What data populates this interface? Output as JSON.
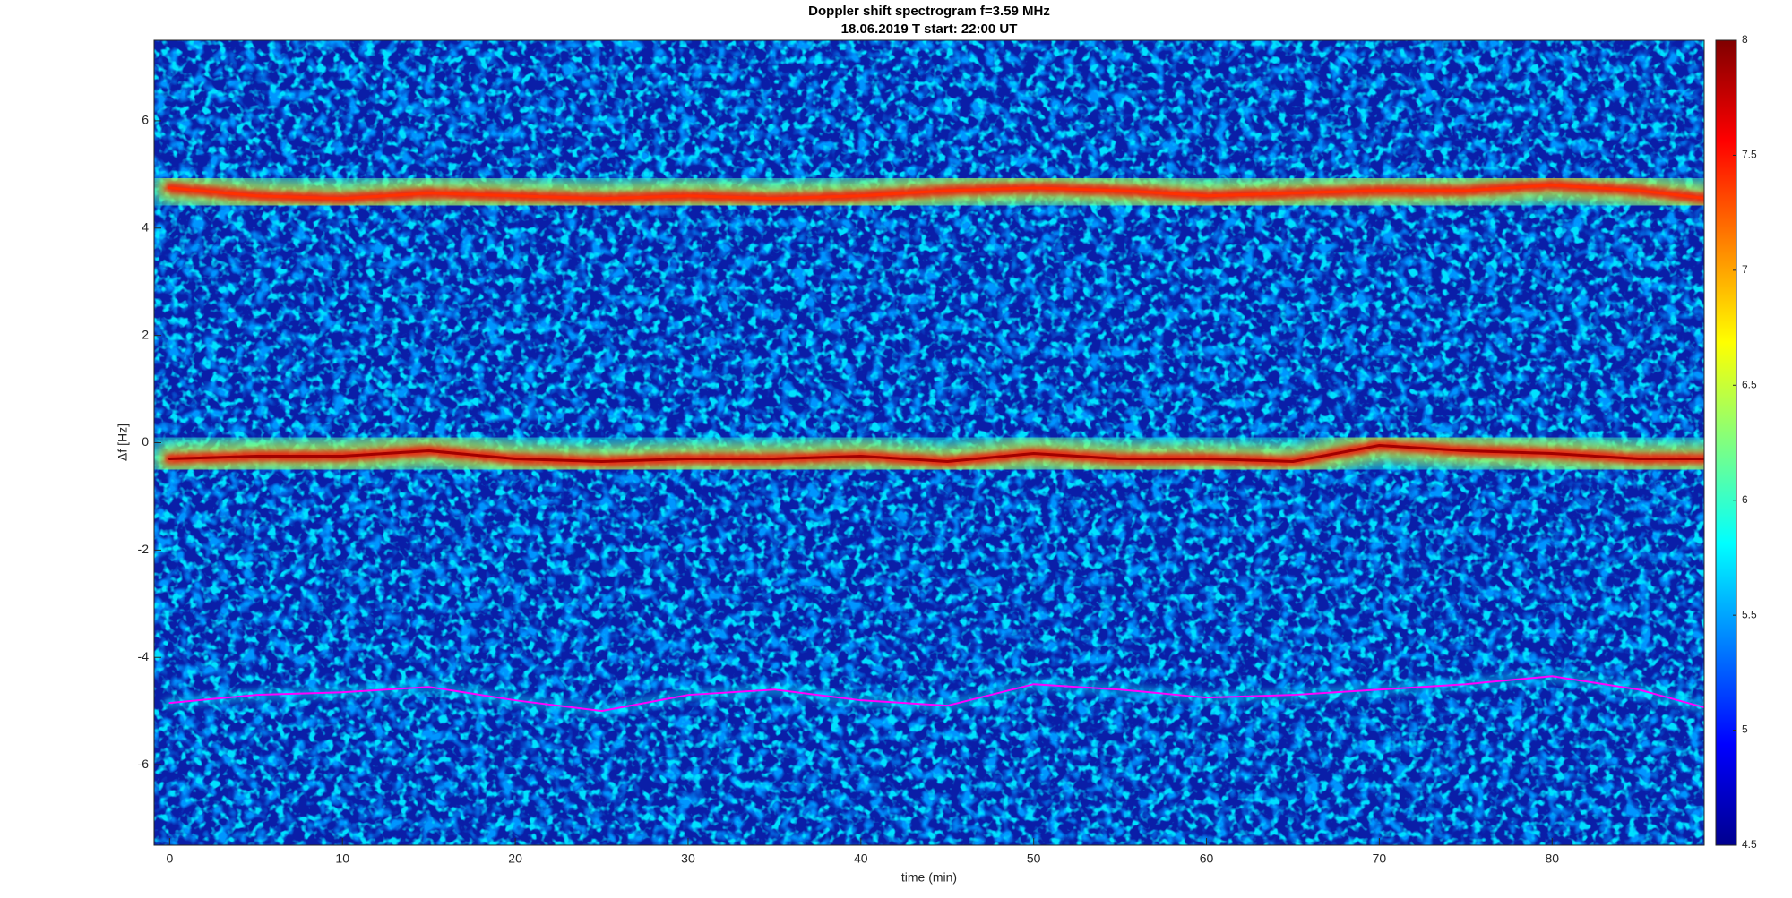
{
  "chart_data": {
    "type": "spectrogram",
    "title": "Doppler shift spectrogram f=3.59 MHz",
    "subtitle": "18.06.2019    T start: 22:00 UT",
    "xlabel": "time (min)",
    "ylabel": "Δf [Hz]",
    "xlim": [
      -0.9,
      88.8
    ],
    "xticks": [
      0,
      10,
      20,
      30,
      40,
      50,
      60,
      70,
      80
    ],
    "ylim": [
      -7.5,
      7.5
    ],
    "yticks": [
      -6,
      -4,
      -2,
      0,
      2,
      4,
      6
    ],
    "background": "#0a1ea8",
    "x": [
      0,
      5,
      10,
      15,
      20,
      25,
      30,
      35,
      40,
      45,
      50,
      55,
      60,
      65,
      70,
      75,
      80,
      85,
      89
    ],
    "series": [
      {
        "color": "#ff3000",
        "values": [
          4.75,
          4.6,
          4.55,
          4.65,
          4.6,
          4.55,
          4.6,
          4.55,
          4.6,
          4.7,
          4.75,
          4.7,
          4.6,
          4.65,
          4.7,
          4.7,
          4.8,
          4.7,
          4.55
        ]
      },
      {
        "color": "#a00000",
        "values": [
          -0.3,
          -0.25,
          -0.25,
          -0.15,
          -0.3,
          -0.35,
          -0.3,
          -0.3,
          -0.25,
          -0.35,
          -0.2,
          -0.3,
          -0.3,
          -0.35,
          -0.05,
          -0.15,
          -0.2,
          -0.3,
          -0.3
        ]
      },
      {
        "color": "#ff00ff",
        "values": [
          -4.85,
          -4.7,
          -4.65,
          -4.55,
          -4.8,
          -5.0,
          -4.7,
          -4.6,
          -4.8,
          -4.9,
          -4.5,
          -4.6,
          -4.75,
          -4.7,
          -4.6,
          -4.5,
          -4.35,
          -4.6,
          -4.95
        ]
      }
    ],
    "colorbar": {
      "clim": [
        4.5,
        8
      ],
      "ticks": [
        4.5,
        5,
        5.5,
        6,
        6.5,
        7,
        7.5,
        8
      ],
      "colormap": [
        "#00008f",
        "#0000ff",
        "#0080ff",
        "#00ffff",
        "#80ff80",
        "#ffff00",
        "#ff8000",
        "#ff0000",
        "#800000"
      ]
    }
  }
}
